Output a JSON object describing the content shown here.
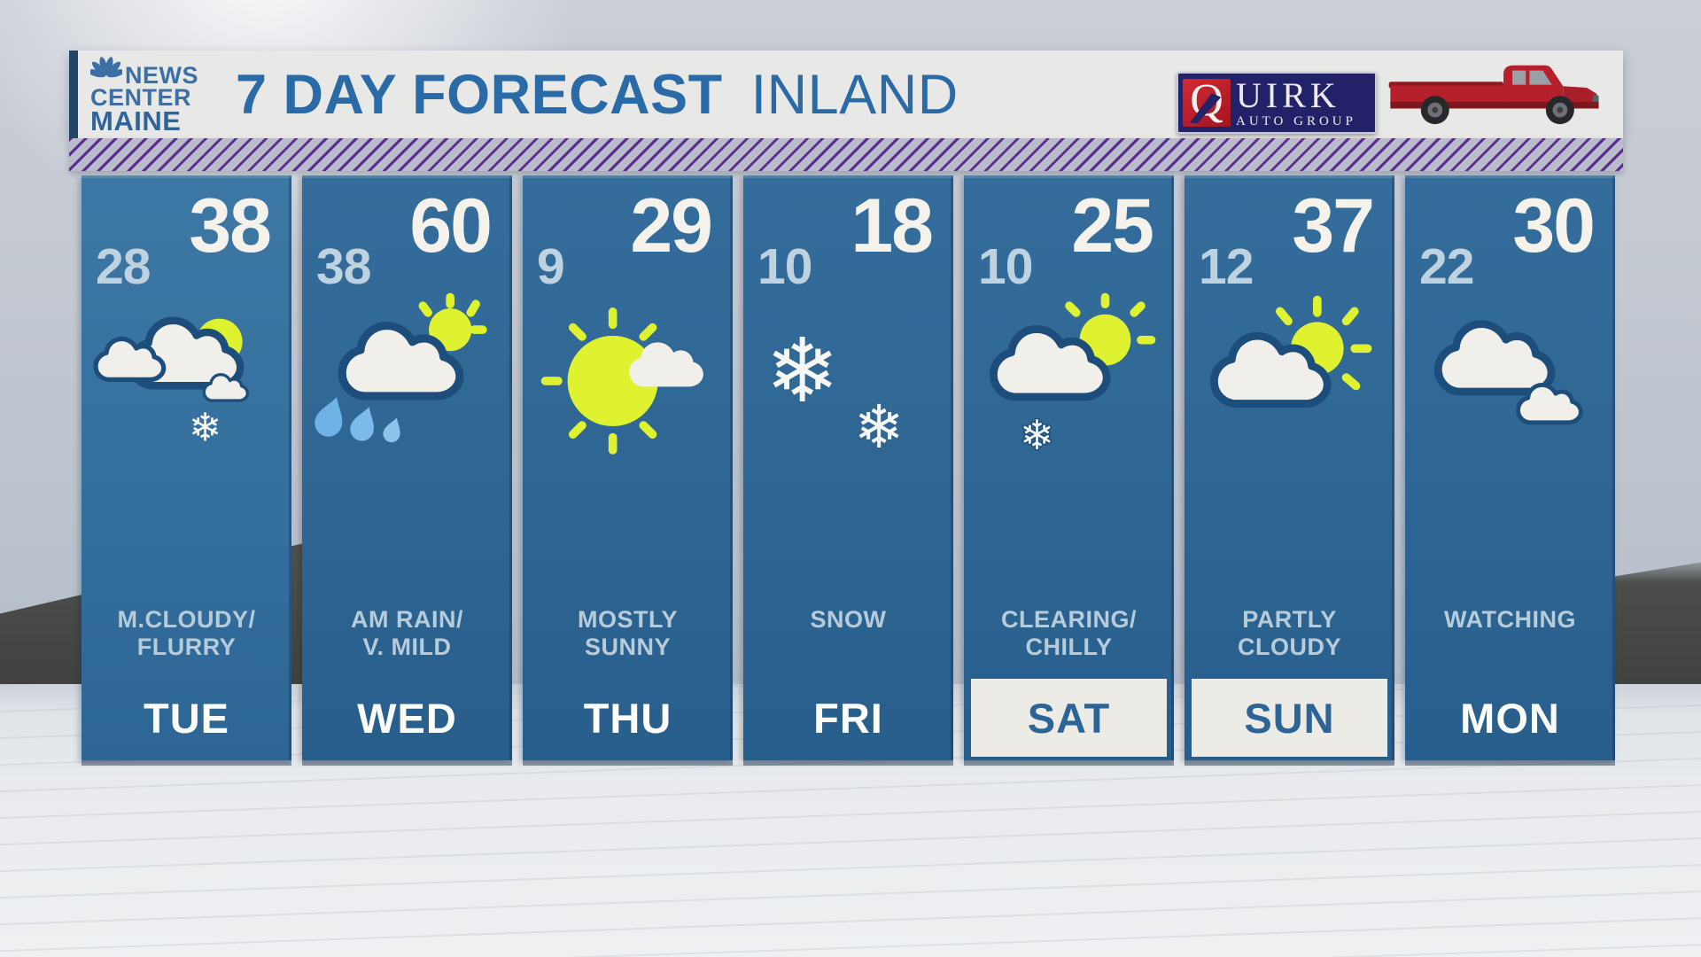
{
  "header": {
    "station": {
      "line1": "NEWS",
      "line2": "CENTER",
      "line3": "MAINE",
      "logo_icon": "nbc-peacock-icon"
    },
    "title_bold": "7 DAY FORECAST",
    "title_light": "INLAND",
    "sponsor": {
      "tile_letter": "Q",
      "wordmark_rest": "UIRK",
      "sub": "AUTO GROUP",
      "logo_icon": "quirk-auto-group-logo"
    },
    "truck_icon": "red-pickup-truck"
  },
  "forecast": {
    "days": [
      {
        "day": "TUE",
        "low": "28",
        "high": "38",
        "condition": [
          "M.CLOUDY/",
          "FLURRY"
        ],
        "icon": "mostly-cloudy-flurry",
        "highlight": false
      },
      {
        "day": "WED",
        "low": "38",
        "high": "60",
        "condition": [
          "AM RAIN/",
          "V. MILD"
        ],
        "icon": "rain-sun-cloud",
        "highlight": false
      },
      {
        "day": "THU",
        "low": "9",
        "high": "29",
        "condition": [
          "MOSTLY",
          "SUNNY"
        ],
        "icon": "mostly-sunny",
        "highlight": false
      },
      {
        "day": "FRI",
        "low": "10",
        "high": "18",
        "condition": [
          "SNOW"
        ],
        "icon": "snow",
        "highlight": false
      },
      {
        "day": "SAT",
        "low": "10",
        "high": "25",
        "condition": [
          "CLEARING/",
          "CHILLY"
        ],
        "icon": "clearing-snow-sun-cloud",
        "highlight": true
      },
      {
        "day": "SUN",
        "low": "12",
        "high": "37",
        "condition": [
          "PARTLY",
          "CLOUDY"
        ],
        "icon": "sun-behind-cloud",
        "highlight": true
      },
      {
        "day": "MON",
        "low": "22",
        "high": "30",
        "condition": [
          "WATCHING"
        ],
        "icon": "clouds",
        "highlight": false
      }
    ]
  },
  "chart_data": {
    "type": "table",
    "title": "7 DAY FORECAST INLAND",
    "columns": [
      "day",
      "low_f",
      "high_f",
      "condition"
    ],
    "rows": [
      [
        "TUE",
        28,
        38,
        "M.CLOUDY/FLURRY"
      ],
      [
        "WED",
        38,
        60,
        "AM RAIN/V. MILD"
      ],
      [
        "THU",
        9,
        29,
        "MOSTLY SUNNY"
      ],
      [
        "FRI",
        10,
        18,
        "SNOW"
      ],
      [
        "SAT",
        10,
        25,
        "CLEARING/CHILLY"
      ],
      [
        "SUN",
        12,
        37,
        "PARTLY CLOUDY"
      ],
      [
        "MON",
        22,
        30,
        "WATCHING"
      ]
    ],
    "weekend_highlighted": [
      "SAT",
      "SUN"
    ]
  },
  "colors": {
    "column_blue": "#2e6593",
    "column_blue_light": "#3d77a4",
    "title_blue": "#2a6aa7",
    "stripe_purple": "#5a2e8e",
    "sun_yellow": "#def230",
    "cloud_fill": "#f1efe9",
    "cloud_outline": "#1d4e7b",
    "rain_blue": "#7cbbe9",
    "low_temp": "#bed2e0",
    "high_temp": "#f4f2ea",
    "weekend_box": "#edebe6"
  }
}
